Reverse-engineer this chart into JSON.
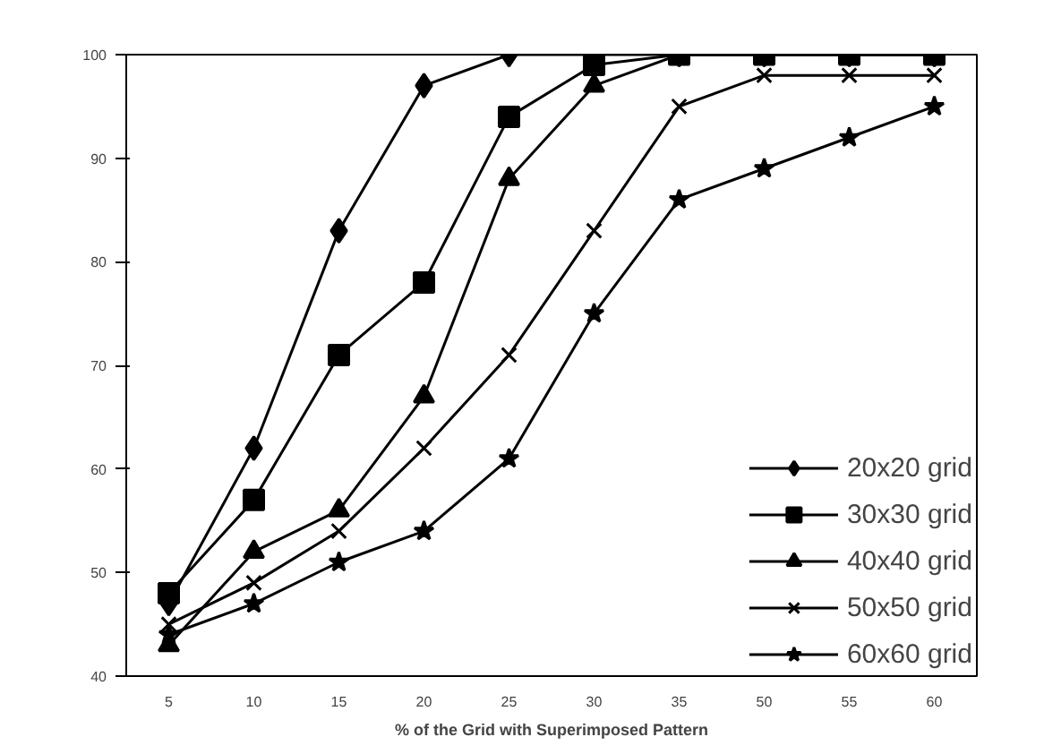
{
  "chart_data": {
    "type": "line",
    "xlabel": "% of the Grid with Superimposed Pattern",
    "categories": [
      "5",
      "10",
      "15",
      "20",
      "25",
      "30",
      "35",
      "50",
      "55",
      "60"
    ],
    "ylim": [
      40,
      100
    ],
    "yticks": [
      40,
      50,
      60,
      70,
      80,
      90,
      100
    ],
    "grid": false,
    "legend": "right",
    "line_style": "solid",
    "series": [
      {
        "name": "20x20 grid",
        "color": "#000000",
        "marker": "diamond",
        "values": [
          47,
          62,
          83,
          97,
          100,
          100,
          100,
          100,
          100,
          100
        ]
      },
      {
        "name": "30x30 grid",
        "color": "#000000",
        "marker": "square",
        "values": [
          48,
          57,
          71,
          78,
          94,
          99,
          100,
          100,
          100,
          100
        ]
      },
      {
        "name": "40x40 grid",
        "color": "#000000",
        "marker": "triangle",
        "values": [
          43,
          52,
          56,
          67,
          88,
          97,
          100,
          100,
          100,
          100
        ]
      },
      {
        "name": "50x50 grid",
        "color": "#000000",
        "marker": "cross",
        "values": [
          45,
          49,
          54,
          62,
          71,
          83,
          95,
          98,
          98,
          98
        ]
      },
      {
        "name": "60x60 grid",
        "color": "#000000",
        "marker": "star",
        "values": [
          44,
          47,
          51,
          54,
          61,
          75,
          86,
          89,
          92,
          95
        ]
      }
    ]
  }
}
